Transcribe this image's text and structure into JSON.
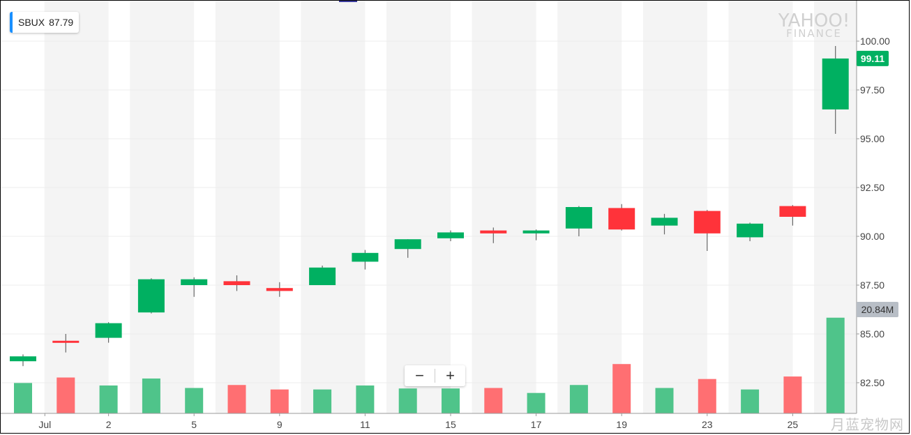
{
  "legend": {
    "symbol": "SBUX",
    "price": "87.79",
    "accent_color": "#188fff"
  },
  "watermark": {
    "line1": "YAHOO!",
    "line2": "FINANCE"
  },
  "corner_watermark": "月蓝宠物网",
  "zoom": {
    "minus_icon": "minus-icon",
    "plus_icon": "plus-icon",
    "minus": "−",
    "plus": "+"
  },
  "colors": {
    "up": "#00b061",
    "down": "#ff333a",
    "vol_up": "#4fc48a",
    "vol_down": "#ff6f72",
    "band": "#f4f4f4",
    "price_tag": "#00b061",
    "vol_tag": "#b8bec6"
  },
  "chart_data": {
    "type": "candlestick",
    "ylim": [
      80.8,
      101.6
    ],
    "yticks": [
      82.5,
      85,
      87.5,
      90,
      92.5,
      95,
      97.5,
      100
    ],
    "ytick_labels": [
      "82.50",
      "85.00",
      "87.50",
      "90.00",
      "92.50",
      "95.00",
      "97.50",
      "100.00"
    ],
    "x_labels": [
      {
        "index": 1,
        "label": "Jul"
      },
      {
        "index": 2,
        "label": "2"
      },
      {
        "index": 4,
        "label": "5"
      },
      {
        "index": 6,
        "label": "9"
      },
      {
        "index": 8,
        "label": "11"
      },
      {
        "index": 10,
        "label": "15"
      },
      {
        "index": 12,
        "label": "17"
      },
      {
        "index": 14,
        "label": "19"
      },
      {
        "index": 16,
        "label": "23"
      },
      {
        "index": 18,
        "label": "25"
      }
    ],
    "candles": [
      {
        "open": 83.6,
        "high": 83.95,
        "low": 83.35,
        "close": 83.85
      },
      {
        "open": 84.65,
        "high": 85.0,
        "low": 84.05,
        "close": 84.55
      },
      {
        "open": 84.8,
        "high": 85.6,
        "low": 84.55,
        "close": 85.55
      },
      {
        "open": 86.1,
        "high": 87.85,
        "low": 86.05,
        "close": 87.8
      },
      {
        "open": 87.5,
        "high": 87.9,
        "low": 86.9,
        "close": 87.8
      },
      {
        "open": 87.7,
        "high": 88.0,
        "low": 87.2,
        "close": 87.5
      },
      {
        "open": 87.35,
        "high": 87.65,
        "low": 86.9,
        "close": 87.2
      },
      {
        "open": 87.5,
        "high": 88.5,
        "low": 87.5,
        "close": 88.4
      },
      {
        "open": 88.7,
        "high": 89.3,
        "low": 88.3,
        "close": 89.15
      },
      {
        "open": 89.35,
        "high": 89.85,
        "low": 88.9,
        "close": 89.85
      },
      {
        "open": 89.9,
        "high": 90.3,
        "low": 89.75,
        "close": 90.2
      },
      {
        "open": 90.3,
        "high": 90.45,
        "low": 89.65,
        "close": 90.15
      },
      {
        "open": 90.15,
        "high": 90.35,
        "low": 89.8,
        "close": 90.3
      },
      {
        "open": 90.4,
        "high": 91.55,
        "low": 90.0,
        "close": 91.5
      },
      {
        "open": 91.45,
        "high": 91.65,
        "low": 90.3,
        "close": 90.35
      },
      {
        "open": 90.55,
        "high": 91.15,
        "low": 90.1,
        "close": 90.95
      },
      {
        "open": 91.3,
        "high": 91.35,
        "low": 89.25,
        "close": 90.15
      },
      {
        "open": 89.95,
        "high": 90.7,
        "low": 89.75,
        "close": 90.65
      },
      {
        "open": 91.55,
        "high": 91.6,
        "low": 90.55,
        "close": 91.0
      },
      {
        "open": 96.5,
        "high": 99.75,
        "low": 95.25,
        "close": 99.11
      }
    ],
    "volume": {
      "max_label_value": 20.84,
      "last_label": "20.84M",
      "values": [
        6.1,
        7.2,
        5.6,
        7.0,
        5.1,
        5.7,
        4.8,
        4.8,
        5.6,
        5.0,
        5.0,
        5.1,
        4.1,
        5.7,
        9.9,
        5.1,
        6.9,
        4.8,
        7.4,
        19.2
      ]
    },
    "last_price_label": "99.11"
  }
}
